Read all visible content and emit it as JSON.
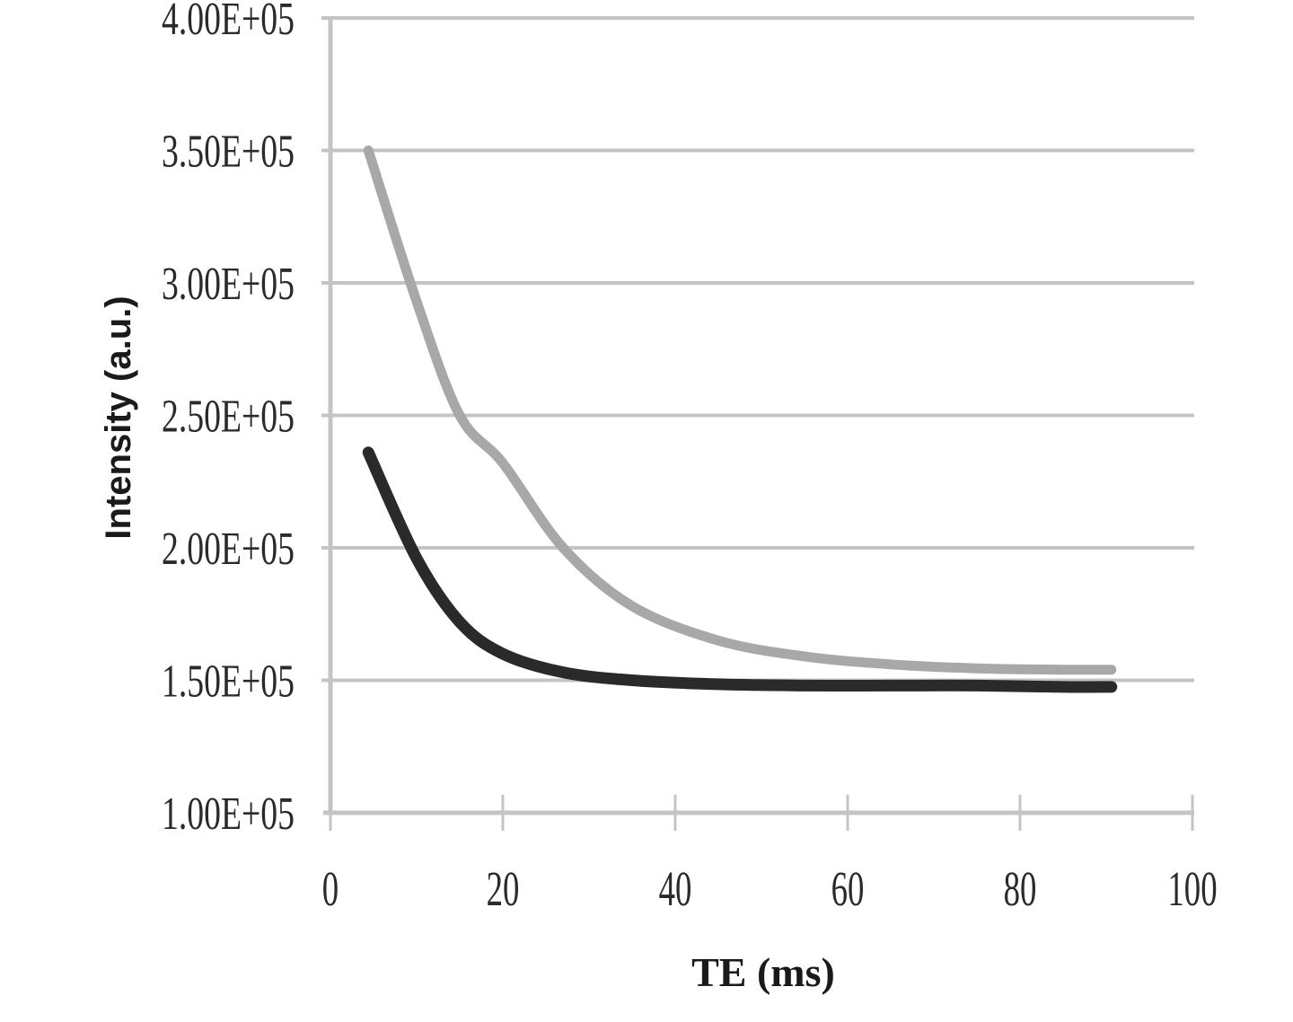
{
  "chart_data": {
    "type": "line",
    "title": "",
    "xlabel": "TE (ms)",
    "ylabel": "Intensity (a.u.)",
    "xlim": [
      0,
      100
    ],
    "ylim": [
      100000,
      400000
    ],
    "x_ticks": [
      "0",
      "20",
      "40",
      "60",
      "80",
      "100"
    ],
    "y_ticks": [
      "1.00E+05",
      "1.50E+05",
      "2.00E+05",
      "2.50E+05",
      "3.00E+05",
      "3.50E+05",
      "4.00E+05"
    ],
    "grid": "horizontal",
    "legend": null,
    "x": [
      4.4,
      10,
      15,
      20,
      27,
      35,
      45,
      55,
      65,
      75,
      85,
      90.6
    ],
    "series": [
      {
        "name": "light gray curve",
        "color": "#a8a8a8",
        "values": [
          350000,
          293000,
          250000,
          232000,
          200000,
          178000,
          165000,
          159000,
          156000,
          154500,
          154000,
          154000
        ]
      },
      {
        "name": "black curve",
        "color": "#2a2a2a",
        "values": [
          236000,
          196000,
          172000,
          160000,
          153000,
          150000,
          148500,
          148000,
          148000,
          148000,
          147500,
          147500
        ]
      }
    ]
  }
}
